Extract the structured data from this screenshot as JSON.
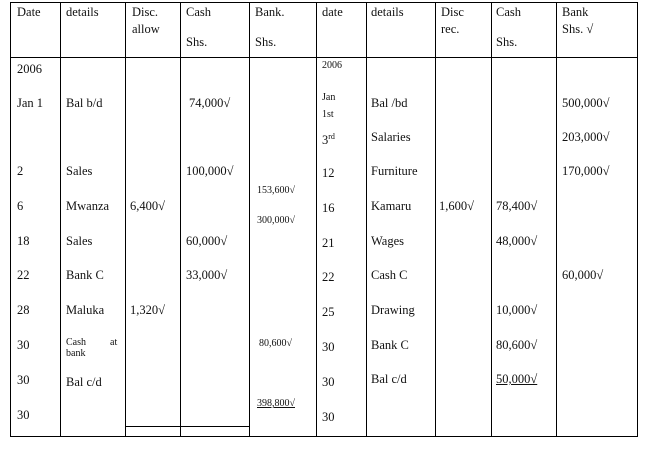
{
  "headers": {
    "left": {
      "date": "Date",
      "details": "details",
      "disc1": "Disc.",
      "disc2": "allow",
      "cash1": "Cash",
      "cash2": "Shs.",
      "bank1": "Bank.",
      "bank2": "Shs."
    },
    "right": {
      "date": "date",
      "details": "details",
      "disc1": "Disc",
      "disc2": "rec.",
      "cash1": "Cash",
      "cash2": "Shs.",
      "bank1": "Bank",
      "bank2": "Shs. √"
    }
  },
  "left": {
    "year": "2006",
    "rows": [
      {
        "date": "Jan 1",
        "details": "Bal b/d",
        "disc": "",
        "cash": "74,000√",
        "bank": ""
      },
      {
        "date": "2",
        "details": "Sales",
        "disc": "",
        "cash": "100,000√",
        "bank": ""
      },
      {
        "date": "6",
        "details": "Mwanza",
        "disc": "6,400√",
        "cash": "",
        "bank": ""
      },
      {
        "date": "18",
        "details": "Sales",
        "disc": "",
        "cash": "60,000√",
        "bank": ""
      },
      {
        "date": "22",
        "details": "Bank C",
        "disc": "",
        "cash": "33,000√",
        "bank": ""
      },
      {
        "date": "28",
        "details": "Maluka",
        "disc": "1,320√",
        "cash": "",
        "bank": ""
      },
      {
        "date": "30",
        "details_a": "Cash",
        "details_b": "at",
        "details_c": "bank",
        "disc": "",
        "cash": "",
        "bank": "80,600√"
      },
      {
        "date": "30",
        "details": "Bal c/d",
        "disc": "",
        "cash": "",
        "bank": ""
      },
      {
        "date": "30",
        "details": "",
        "disc": "",
        "cash": "",
        "bank": "398,800√"
      }
    ],
    "bank_extra": [
      "153,600√",
      "300,000√"
    ]
  },
  "right": {
    "year": "2006",
    "rows": [
      {
        "date_a": "Jan",
        "date_b": "1st",
        "details": "Bal /bd",
        "disc": "",
        "cash": "",
        "bank": "500,000√"
      },
      {
        "date": "3",
        "date_sup": "rd",
        "details": "Salaries",
        "disc": "",
        "cash": "",
        "bank": "203,000√"
      },
      {
        "date": "12",
        "details": "Furniture",
        "disc": "",
        "cash": "",
        "bank": "170,000√"
      },
      {
        "date": "16",
        "details": "Kamaru",
        "disc": "1,600√",
        "cash": "78,400√",
        "bank": ""
      },
      {
        "date": "21",
        "details": "Wages",
        "disc": "",
        "cash": "48,000√",
        "bank": ""
      },
      {
        "date": "22",
        "details": "Cash C",
        "disc": "",
        "cash": "",
        "bank": "60,000√"
      },
      {
        "date": "25",
        "details": "Drawing",
        "disc": "",
        "cash": "10,000√",
        "bank": ""
      },
      {
        "date": "30",
        "details": "Bank C",
        "disc": "",
        "cash": "80,600√",
        "bank": ""
      },
      {
        "date": "30",
        "details": "Bal c/d",
        "disc": "",
        "cash": "50,000√",
        "bank": ""
      },
      {
        "date": "30",
        "details": "",
        "disc": "",
        "cash": "",
        "bank": ""
      }
    ]
  }
}
